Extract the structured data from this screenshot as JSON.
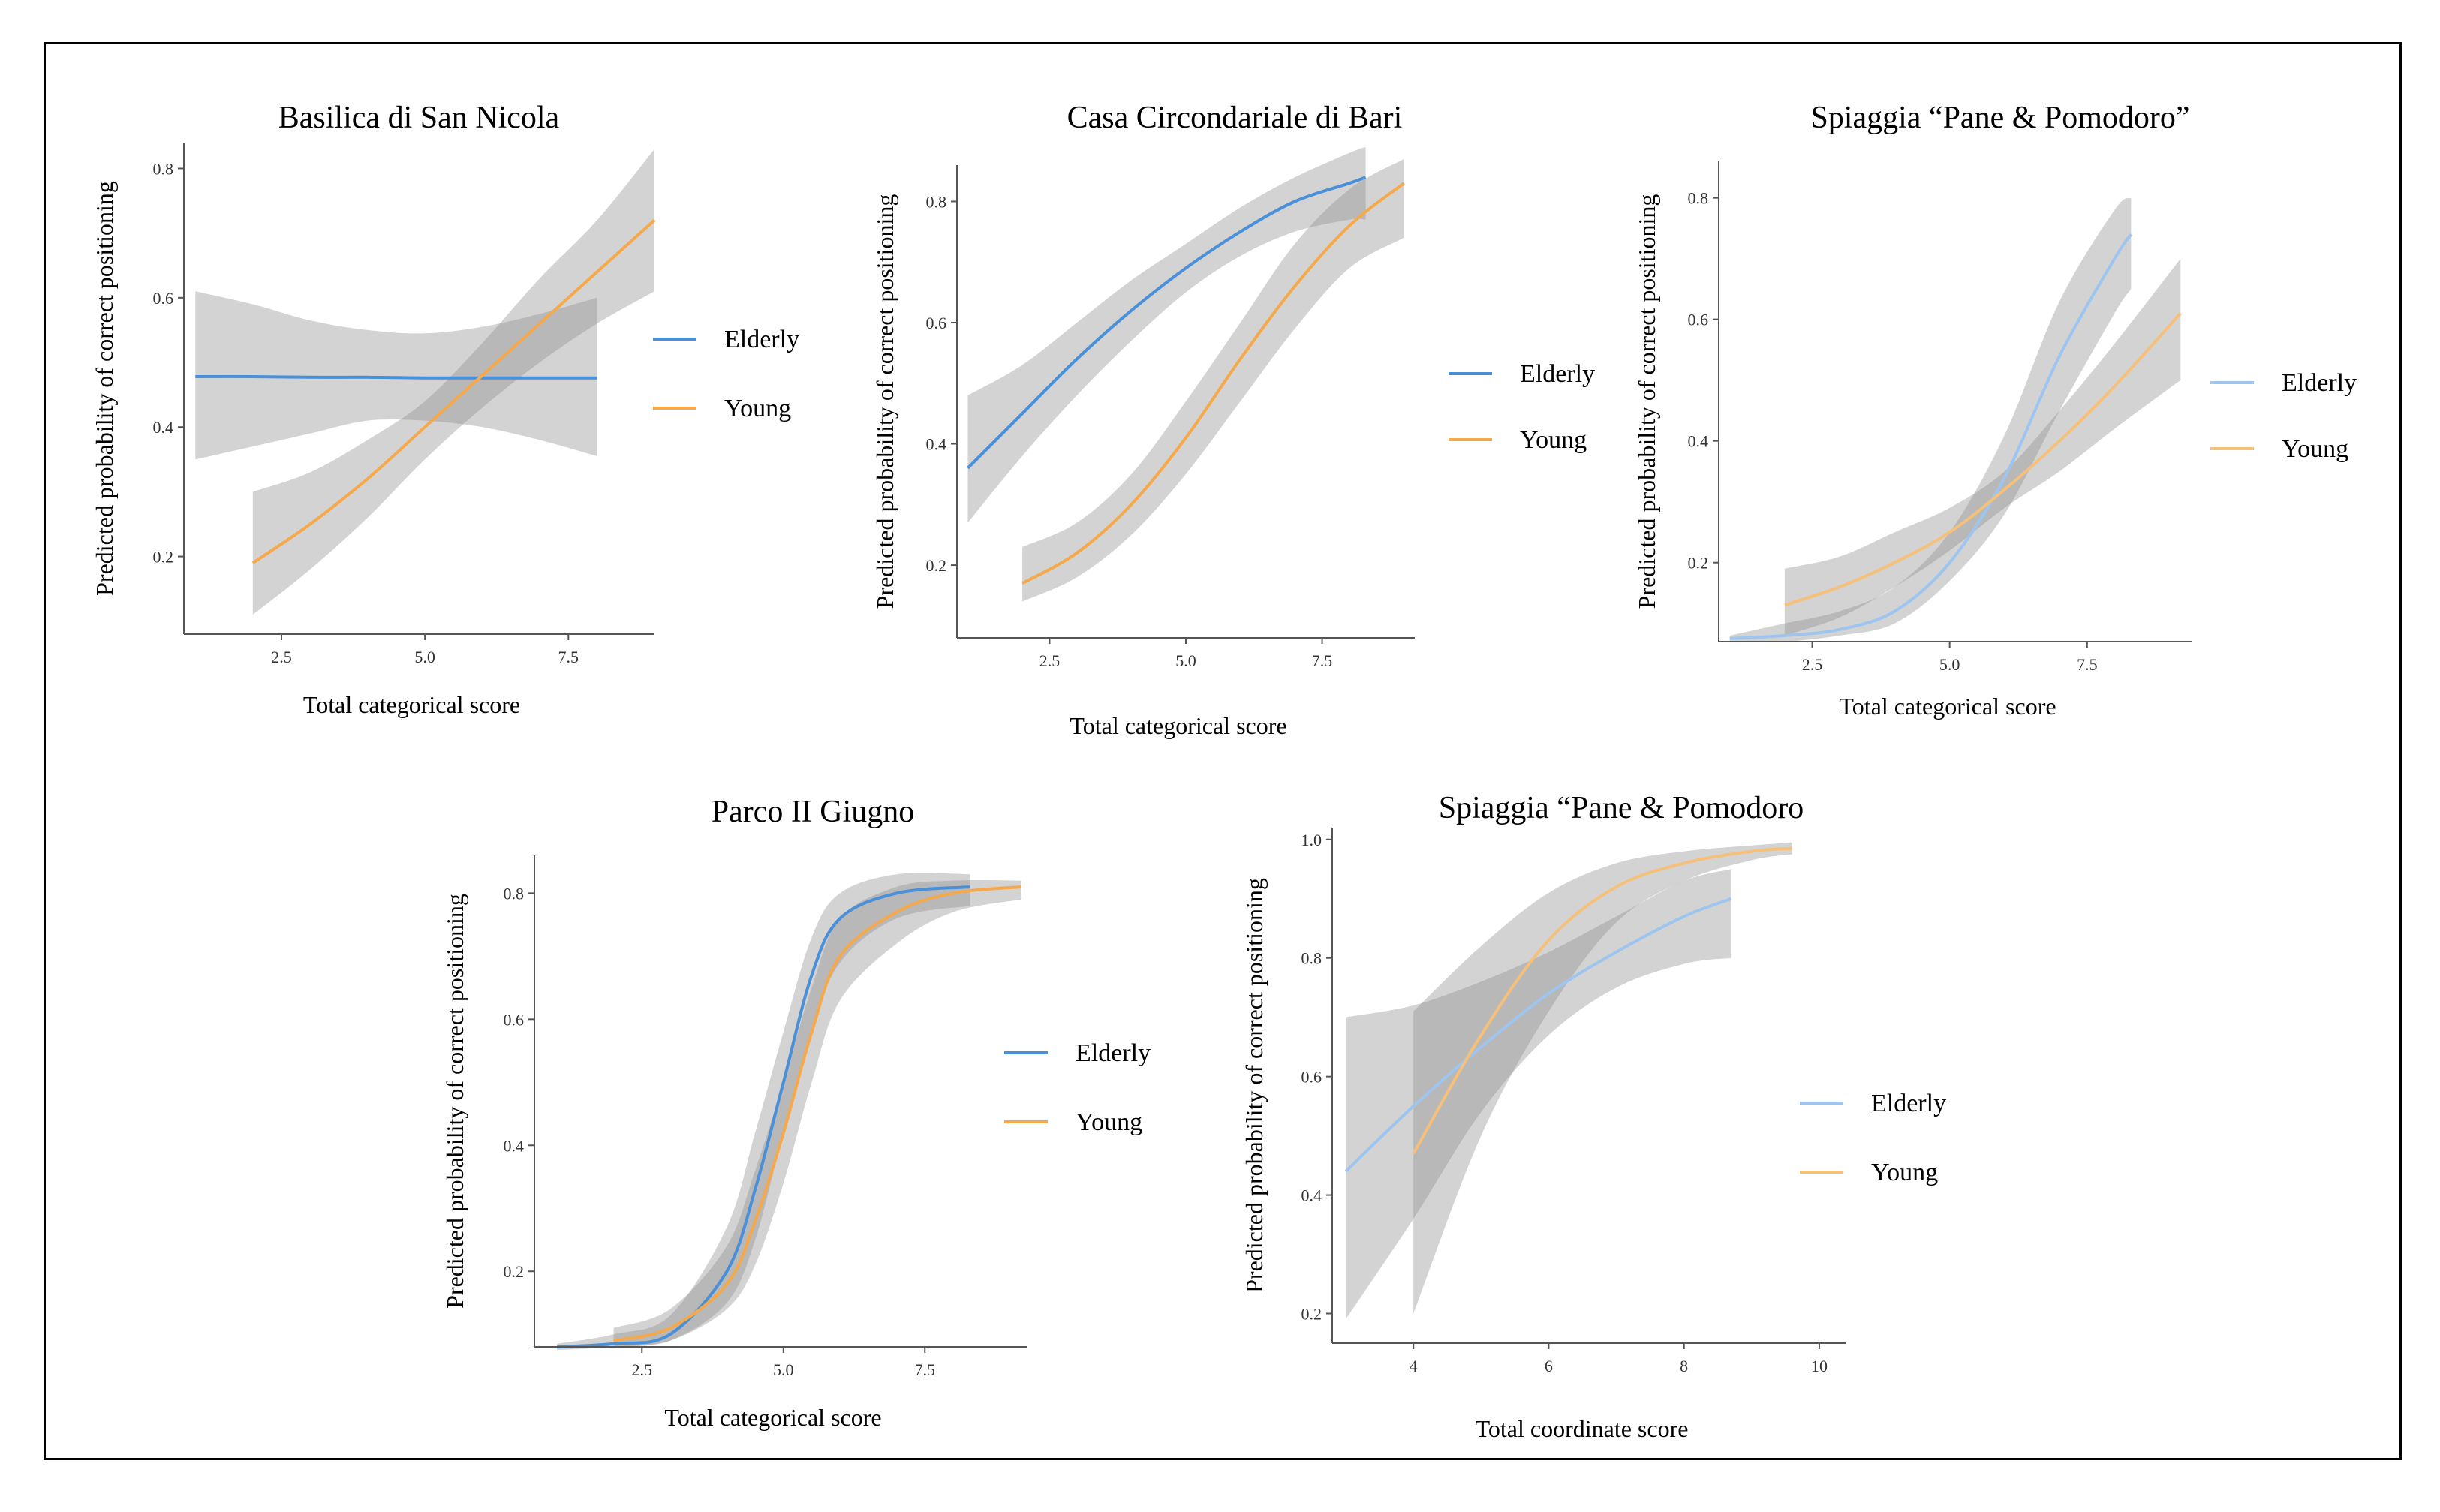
{
  "chart_data": [
    {
      "type": "line",
      "title": "Basilica di San Nicola",
      "xlabel": "Total categorical score",
      "ylabel": "Predicted probability of correct positioning",
      "xlim": [
        0.8,
        9.0
      ],
      "ylim": [
        0.08,
        0.84
      ],
      "xticks": [
        2.5,
        5.0,
        7.5
      ],
      "xtick_labels": [
        "2.5",
        "5.0",
        "7.5"
      ],
      "yticks": [
        0.2,
        0.4,
        0.6,
        0.8
      ],
      "ytick_labels": [
        "0.2",
        "0.4",
        "0.6",
        "0.8"
      ],
      "series": [
        {
          "name": "Elderly",
          "color": "#4a90d9",
          "x": [
            1,
            2,
            3,
            4,
            5,
            6,
            7,
            8
          ],
          "y": [
            0.478,
            0.478,
            0.477,
            0.477,
            0.476,
            0.476,
            0.476,
            0.476
          ],
          "lower": [
            0.35,
            0.37,
            0.39,
            0.41,
            0.41,
            0.4,
            0.38,
            0.355
          ],
          "upper": [
            0.61,
            0.59,
            0.565,
            0.55,
            0.545,
            0.555,
            0.575,
            0.6
          ]
        },
        {
          "name": "Young",
          "color": "#f5a94a",
          "x": [
            2,
            3,
            4,
            5,
            6,
            7,
            8,
            9
          ],
          "y": [
            0.19,
            0.25,
            0.32,
            0.4,
            0.48,
            0.56,
            0.64,
            0.72
          ],
          "lower": [
            0.11,
            0.18,
            0.26,
            0.35,
            0.43,
            0.5,
            0.56,
            0.61
          ],
          "upper": [
            0.3,
            0.33,
            0.38,
            0.44,
            0.53,
            0.63,
            0.72,
            0.83
          ]
        }
      ]
    },
    {
      "type": "line",
      "title": "Casa Circondariale  di Bari",
      "xlabel": "Total categorical score",
      "ylabel": "Predicted probability of correct positioning",
      "xlim": [
        0.8,
        9.2
      ],
      "ylim": [
        0.08,
        0.86
      ],
      "xticks": [
        2.5,
        5.0,
        7.5
      ],
      "xtick_labels": [
        "2.5",
        "5.0",
        "7.5"
      ],
      "yticks": [
        0.2,
        0.4,
        0.6,
        0.8
      ],
      "ytick_labels": [
        "0.2",
        "0.4",
        "0.6",
        "0.8"
      ],
      "series": [
        {
          "name": "Elderly",
          "color": "#4a90d9",
          "x": [
            1,
            2,
            3,
            4,
            5,
            6,
            7,
            8,
            8.3
          ],
          "y": [
            0.36,
            0.45,
            0.54,
            0.62,
            0.69,
            0.75,
            0.8,
            0.83,
            0.84
          ],
          "lower": [
            0.27,
            0.38,
            0.48,
            0.57,
            0.65,
            0.71,
            0.75,
            0.77,
            0.77
          ],
          "upper": [
            0.48,
            0.53,
            0.6,
            0.67,
            0.73,
            0.79,
            0.84,
            0.88,
            0.89
          ]
        },
        {
          "name": "Young",
          "color": "#f5a94a",
          "x": [
            2,
            3,
            4,
            5,
            6,
            7,
            8,
            9
          ],
          "y": [
            0.17,
            0.22,
            0.3,
            0.41,
            0.54,
            0.66,
            0.76,
            0.83
          ],
          "lower": [
            0.14,
            0.18,
            0.25,
            0.35,
            0.47,
            0.59,
            0.69,
            0.74
          ],
          "upper": [
            0.23,
            0.27,
            0.35,
            0.47,
            0.6,
            0.73,
            0.82,
            0.87
          ]
        }
      ]
    },
    {
      "type": "line",
      "title": "Spiaggia “Pane & Pomodoro”",
      "xlabel": "Total categorical score",
      "ylabel": "Predicted probability of correct positioning",
      "xlim": [
        0.8,
        9.4
      ],
      "ylim": [
        0.07,
        0.86
      ],
      "xticks": [
        2.5,
        5.0,
        7.5
      ],
      "xtick_labels": [
        "2.5",
        "5.0",
        "7.5"
      ],
      "yticks": [
        0.2,
        0.4,
        0.6,
        0.8
      ],
      "ytick_labels": [
        "0.2",
        "0.4",
        "0.6",
        "0.8"
      ],
      "series": [
        {
          "name": "Elderly",
          "color": "#9ec5ef",
          "x": [
            1,
            2,
            3,
            4,
            5,
            6,
            7,
            8,
            8.3
          ],
          "y": [
            0.075,
            0.08,
            0.09,
            0.12,
            0.2,
            0.34,
            0.54,
            0.7,
            0.74
          ],
          "lower": [
            0.07,
            0.07,
            0.08,
            0.1,
            0.17,
            0.28,
            0.45,
            0.61,
            0.65
          ],
          "upper": [
            0.08,
            0.1,
            0.12,
            0.16,
            0.25,
            0.41,
            0.63,
            0.78,
            0.8
          ]
        },
        {
          "name": "Young",
          "color": "#f5c07a",
          "x": [
            2,
            3,
            4,
            5,
            6,
            7,
            8,
            9.2
          ],
          "y": [
            0.13,
            0.16,
            0.2,
            0.25,
            0.32,
            0.4,
            0.49,
            0.61
          ],
          "lower": [
            0.08,
            0.11,
            0.16,
            0.22,
            0.29,
            0.35,
            0.42,
            0.5
          ],
          "upper": [
            0.19,
            0.21,
            0.25,
            0.29,
            0.35,
            0.45,
            0.56,
            0.7
          ]
        }
      ]
    },
    {
      "type": "line",
      "title": "Parco II Giugno",
      "xlabel": "Total categorical score",
      "ylabel": "Predicted probability of correct positioning",
      "xlim": [
        0.6,
        9.3
      ],
      "ylim": [
        0.08,
        0.86
      ],
      "xticks": [
        2.5,
        5.0,
        7.5
      ],
      "xtick_labels": [
        "2.5",
        "5.0",
        "7.5"
      ],
      "yticks": [
        0.2,
        0.4,
        0.6,
        0.8
      ],
      "ytick_labels": [
        "0.2",
        "0.4",
        "0.6",
        "0.8"
      ],
      "series": [
        {
          "name": "Elderly",
          "color": "#4a90d9",
          "x": [
            1,
            2,
            3,
            4,
            4.5,
            5,
            5.5,
            6,
            7,
            8.3
          ],
          "y": [
            0.08,
            0.085,
            0.1,
            0.2,
            0.33,
            0.5,
            0.67,
            0.76,
            0.8,
            0.81
          ],
          "lower": [
            0.075,
            0.08,
            0.09,
            0.15,
            0.25,
            0.42,
            0.58,
            0.69,
            0.76,
            0.78
          ],
          "upper": [
            0.085,
            0.1,
            0.13,
            0.27,
            0.42,
            0.58,
            0.73,
            0.8,
            0.83,
            0.83
          ]
        },
        {
          "name": "Young",
          "color": "#f5a94a",
          "x": [
            2,
            3,
            4,
            4.5,
            5,
            5.5,
            6,
            7,
            8,
            9.2
          ],
          "y": [
            0.09,
            0.11,
            0.18,
            0.28,
            0.42,
            0.58,
            0.7,
            0.77,
            0.8,
            0.81
          ],
          "lower": [
            0.08,
            0.09,
            0.14,
            0.21,
            0.34,
            0.5,
            0.63,
            0.72,
            0.77,
            0.79
          ],
          "upper": [
            0.11,
            0.14,
            0.24,
            0.36,
            0.5,
            0.65,
            0.76,
            0.81,
            0.82,
            0.82
          ]
        }
      ]
    },
    {
      "type": "line",
      "title": "Spiaggia “Pane & Pomodoro",
      "xlabel": "Total coordinate score",
      "ylabel": "Predicted probability of correct positioning",
      "xlim": [
        2.8,
        10.4
      ],
      "ylim": [
        0.15,
        1.02
      ],
      "xticks": [
        4,
        6,
        8,
        10
      ],
      "xtick_labels": [
        "4",
        "6",
        "8",
        "10"
      ],
      "yticks": [
        0.2,
        0.4,
        0.6,
        0.8,
        1.0
      ],
      "ytick_labels": [
        "0.2",
        "0.4",
        "0.6",
        "0.8",
        "1.0"
      ],
      "series": [
        {
          "name": "Elderly",
          "color": "#9ec5ef",
          "x": [
            3,
            4,
            5,
            6,
            7,
            8,
            8.7
          ],
          "y": [
            0.44,
            0.55,
            0.65,
            0.74,
            0.81,
            0.87,
            0.9
          ],
          "lower": [
            0.19,
            0.36,
            0.54,
            0.67,
            0.75,
            0.79,
            0.8
          ],
          "upper": [
            0.7,
            0.72,
            0.76,
            0.81,
            0.87,
            0.93,
            0.95
          ]
        },
        {
          "name": "Young",
          "color": "#f5c07a",
          "x": [
            4,
            5,
            6,
            7,
            8,
            9,
            9.6
          ],
          "y": [
            0.47,
            0.67,
            0.83,
            0.92,
            0.96,
            0.98,
            0.985
          ],
          "lower": [
            0.2,
            0.5,
            0.71,
            0.86,
            0.93,
            0.965,
            0.975
          ],
          "upper": [
            0.71,
            0.82,
            0.91,
            0.96,
            0.98,
            0.99,
            0.995
          ]
        }
      ]
    }
  ]
}
